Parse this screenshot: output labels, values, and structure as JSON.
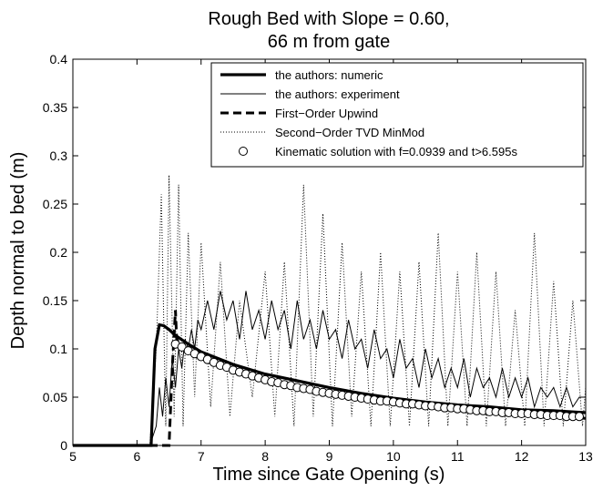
{
  "chart_data": {
    "type": "line",
    "title_lines": [
      "Rough Bed with Slope = 0.60,",
      "66 m from gate"
    ],
    "xlabel": "Time since Gate Opening (s)",
    "ylabel": "Depth normal to bed (m)",
    "xlim": [
      5,
      13
    ],
    "ylim": [
      0,
      0.4
    ],
    "xticks": [
      5,
      6,
      7,
      8,
      9,
      10,
      11,
      12,
      13
    ],
    "yticks": [
      0,
      0.05,
      0.1,
      0.15,
      0.2,
      0.25,
      0.3,
      0.35,
      0.4
    ],
    "xtick_labels": [
      "5",
      "6",
      "7",
      "8",
      "9",
      "10",
      "11",
      "12",
      "13"
    ],
    "ytick_labels": [
      "0",
      "0.05",
      "0.1",
      "0.15",
      "0.2",
      "0.25",
      "0.3",
      "0.35",
      "0.4"
    ],
    "grid": false,
    "legend_position": "top-right",
    "series": [
      {
        "name": "the authors: numeric",
        "style": "thick-solid",
        "x": [
          5.0,
          6.0,
          6.22,
          6.28,
          6.35,
          6.42,
          6.5,
          6.6,
          6.8,
          7.0,
          7.5,
          8.0,
          8.5,
          9.0,
          9.5,
          10.0,
          10.5,
          11.0,
          11.5,
          12.0,
          12.5,
          13.0
        ],
        "y": [
          0.0,
          0.0,
          0.0,
          0.1,
          0.125,
          0.124,
          0.12,
          0.114,
          0.105,
          0.097,
          0.084,
          0.074,
          0.067,
          0.06,
          0.054,
          0.049,
          0.045,
          0.042,
          0.04,
          0.037,
          0.036,
          0.034
        ]
      },
      {
        "name": "the authors: experiment",
        "style": "thin-solid",
        "x": [
          5.0,
          6.0,
          6.2,
          6.3,
          6.35,
          6.4,
          6.45,
          6.5,
          6.55,
          6.6,
          6.65,
          6.7,
          6.75,
          6.8,
          6.85,
          6.9,
          6.95,
          7.0,
          7.1,
          7.2,
          7.3,
          7.4,
          7.5,
          7.6,
          7.7,
          7.8,
          7.9,
          8.0,
          8.1,
          8.2,
          8.3,
          8.4,
          8.5,
          8.6,
          8.7,
          8.8,
          8.9,
          9.0,
          9.1,
          9.2,
          9.3,
          9.4,
          9.5,
          9.6,
          9.7,
          9.8,
          9.9,
          10.0,
          10.1,
          10.2,
          10.3,
          10.4,
          10.5,
          10.6,
          10.7,
          10.8,
          10.9,
          11.0,
          11.1,
          11.2,
          11.3,
          11.4,
          11.5,
          11.6,
          11.7,
          11.8,
          11.9,
          12.0,
          12.1,
          12.2,
          12.3,
          12.4,
          12.5,
          12.6,
          12.7,
          12.8,
          12.9,
          13.0
        ],
        "y": [
          0.0,
          0.0,
          0.0,
          0.02,
          0.06,
          0.03,
          0.07,
          0.04,
          0.09,
          0.06,
          0.1,
          0.08,
          0.11,
          0.1,
          0.12,
          0.1,
          0.13,
          0.12,
          0.15,
          0.12,
          0.16,
          0.13,
          0.15,
          0.11,
          0.16,
          0.12,
          0.14,
          0.11,
          0.15,
          0.12,
          0.14,
          0.1,
          0.15,
          0.11,
          0.13,
          0.1,
          0.14,
          0.11,
          0.12,
          0.09,
          0.13,
          0.1,
          0.11,
          0.08,
          0.12,
          0.09,
          0.1,
          0.07,
          0.11,
          0.08,
          0.09,
          0.06,
          0.1,
          0.07,
          0.09,
          0.06,
          0.08,
          0.06,
          0.09,
          0.05,
          0.08,
          0.06,
          0.07,
          0.05,
          0.08,
          0.05,
          0.07,
          0.05,
          0.07,
          0.04,
          0.06,
          0.05,
          0.06,
          0.04,
          0.06,
          0.04,
          0.05,
          0.05
        ]
      },
      {
        "name": "First−Order Upwind",
        "style": "thick-dashed",
        "x": [
          5.0,
          6.5,
          6.55,
          6.6,
          6.62,
          6.7,
          7.0,
          7.5,
          8.0,
          8.5,
          9.0,
          9.5,
          10.0,
          10.5,
          11.0,
          11.5,
          12.0,
          12.5,
          13.0
        ],
        "y": [
          0.0,
          0.0,
          0.08,
          0.14,
          0.11,
          0.102,
          0.092,
          0.078,
          0.067,
          0.059,
          0.052,
          0.047,
          0.043,
          0.04,
          0.037,
          0.034,
          0.032,
          0.03,
          0.028
        ]
      },
      {
        "name": "Second−Order TVD MinMod",
        "style": "dotted",
        "x": [
          5.0,
          6.2,
          6.3,
          6.38,
          6.45,
          6.5,
          6.58,
          6.65,
          6.72,
          6.8,
          6.9,
          7.0,
          7.15,
          7.3,
          7.45,
          7.6,
          7.8,
          8.0,
          8.15,
          8.3,
          8.45,
          8.6,
          8.75,
          8.9,
          9.05,
          9.2,
          9.35,
          9.5,
          9.65,
          9.8,
          9.95,
          10.1,
          10.25,
          10.4,
          10.55,
          10.7,
          10.85,
          11.0,
          11.15,
          11.3,
          11.45,
          11.6,
          11.75,
          11.9,
          12.05,
          12.2,
          12.35,
          12.5,
          12.65,
          12.8,
          12.95,
          13.0
        ],
        "y": [
          0.0,
          0.0,
          0.1,
          0.26,
          0.02,
          0.28,
          0.03,
          0.27,
          0.02,
          0.22,
          0.05,
          0.21,
          0.04,
          0.19,
          0.03,
          0.15,
          0.05,
          0.18,
          0.03,
          0.19,
          0.02,
          0.27,
          0.03,
          0.24,
          0.02,
          0.21,
          0.03,
          0.18,
          0.02,
          0.2,
          0.02,
          0.18,
          0.02,
          0.19,
          0.02,
          0.22,
          0.02,
          0.18,
          0.02,
          0.2,
          0.02,
          0.18,
          0.02,
          0.14,
          0.02,
          0.22,
          0.02,
          0.17,
          0.02,
          0.15,
          0.02,
          0.06
        ]
      },
      {
        "name": "Kinematic solution with f=0.0939 and t>6.595s",
        "style": "circle-markers",
        "x": [
          6.6,
          6.7,
          6.8,
          6.9,
          7.0,
          7.1,
          7.2,
          7.3,
          7.4,
          7.5,
          7.6,
          7.7,
          7.8,
          7.9,
          8.0,
          8.1,
          8.2,
          8.3,
          8.4,
          8.5,
          8.6,
          8.7,
          8.8,
          8.9,
          9.0,
          9.1,
          9.2,
          9.3,
          9.4,
          9.5,
          9.6,
          9.7,
          9.8,
          9.9,
          10.0,
          10.1,
          10.2,
          10.3,
          10.4,
          10.5,
          10.6,
          10.7,
          10.8,
          10.9,
          11.0,
          11.1,
          11.2,
          11.3,
          11.4,
          11.5,
          11.6,
          11.7,
          11.8,
          11.9,
          12.0,
          12.1,
          12.2,
          12.3,
          12.4,
          12.5,
          12.6,
          12.7,
          12.8,
          12.9
        ],
        "y": [
          0.105,
          0.102,
          0.098,
          0.095,
          0.092,
          0.089,
          0.086,
          0.083,
          0.081,
          0.078,
          0.076,
          0.074,
          0.072,
          0.07,
          0.068,
          0.066,
          0.065,
          0.063,
          0.062,
          0.06,
          0.059,
          0.058,
          0.056,
          0.055,
          0.054,
          0.053,
          0.052,
          0.051,
          0.05,
          0.049,
          0.048,
          0.047,
          0.046,
          0.046,
          0.045,
          0.044,
          0.043,
          0.043,
          0.042,
          0.041,
          0.041,
          0.04,
          0.039,
          0.039,
          0.038,
          0.038,
          0.037,
          0.036,
          0.036,
          0.035,
          0.035,
          0.034,
          0.034,
          0.033,
          0.033,
          0.033,
          0.032,
          0.032,
          0.031,
          0.031,
          0.031,
          0.03,
          0.03,
          0.03
        ]
      }
    ]
  }
}
